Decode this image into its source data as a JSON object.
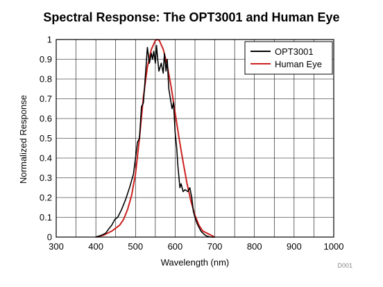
{
  "chart_data": {
    "type": "line",
    "title": "Spectral Response: The OPT3001 and Human Eye",
    "xlabel": "Wavelength (nm)",
    "ylabel": "Normalized Response",
    "xlim": [
      300,
      1000
    ],
    "ylim": [
      0,
      1
    ],
    "x_ticks": [
      300,
      400,
      500,
      600,
      700,
      800,
      900,
      1000
    ],
    "y_ticks": [
      0,
      0.1,
      0.2,
      0.3,
      0.4,
      0.5,
      0.6,
      0.7,
      0.8,
      0.9,
      1
    ],
    "grid": true,
    "legend_position": "top-right",
    "code_label": "D001",
    "series": [
      {
        "name": "OPT3001",
        "color": "#000000",
        "x": [
          400,
          415,
          425,
          432,
          440,
          448,
          455,
          465,
          475,
          485,
          495,
          500,
          505,
          510,
          515,
          520,
          525,
          530,
          535,
          540,
          543,
          546,
          550,
          553,
          556,
          559,
          562,
          565,
          570,
          573,
          577,
          580,
          584,
          588,
          592,
          596,
          600,
          604,
          607,
          612,
          615,
          620,
          625,
          632,
          637,
          642,
          646,
          650,
          655,
          660,
          665,
          670,
          675,
          680,
          690,
          700
        ],
        "y": [
          0,
          0.01,
          0.02,
          0.04,
          0.06,
          0.09,
          0.1,
          0.14,
          0.19,
          0.25,
          0.32,
          0.4,
          0.48,
          0.5,
          0.66,
          0.68,
          0.82,
          0.96,
          0.88,
          0.93,
          0.9,
          0.94,
          0.88,
          0.97,
          0.9,
          0.84,
          0.86,
          0.88,
          0.83,
          0.93,
          0.84,
          0.9,
          0.75,
          0.7,
          0.65,
          0.68,
          0.53,
          0.45,
          0.36,
          0.25,
          0.27,
          0.23,
          0.24,
          0.23,
          0.25,
          0.2,
          0.13,
          0.1,
          0.07,
          0.05,
          0.03,
          0.02,
          0.01,
          0.005,
          0,
          0
        ]
      },
      {
        "name": "Human Eye",
        "color": "#cc1f1f",
        "x": [
          400,
          420,
          440,
          460,
          470,
          480,
          490,
          500,
          510,
          520,
          530,
          540,
          550,
          555,
          560,
          570,
          580,
          590,
          600,
          610,
          620,
          630,
          640,
          650,
          660,
          670,
          680,
          690,
          700
        ],
        "y": [
          0,
          0.01,
          0.03,
          0.06,
          0.09,
          0.14,
          0.21,
          0.32,
          0.5,
          0.71,
          0.86,
          0.95,
          0.995,
          1,
          0.995,
          0.95,
          0.87,
          0.76,
          0.63,
          0.5,
          0.38,
          0.27,
          0.18,
          0.11,
          0.06,
          0.03,
          0.02,
          0.01,
          0
        ]
      }
    ]
  }
}
